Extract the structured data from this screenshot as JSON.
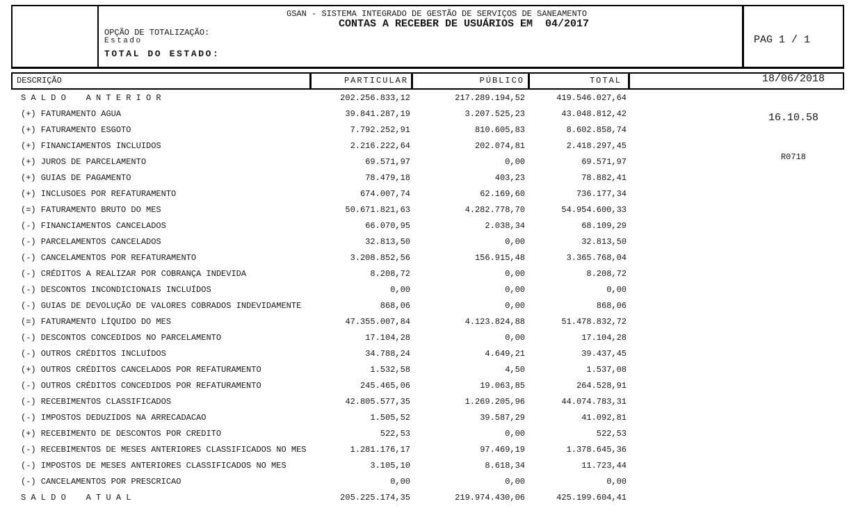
{
  "report": {
    "system_title": "GSAN - SISTEMA INTEGRADO DE GESTÃO DE SERVIÇOS DE SANEAMENTO",
    "title": "CONTAS A RECEBER DE USUÁRIOS EM  04/2017",
    "totalization_option_label": "OPÇÃO DE TOTALIZAÇÃO:",
    "totalization_option_value": "Estado",
    "total_scope_label": "TOTAL DO ESTADO:",
    "page_indicator": "PAG 1 / 1",
    "date": "18/06/2018",
    "time": "16.10.58",
    "report_code": "R0718"
  },
  "table": {
    "columns": {
      "description": "DESCRIÇÃO",
      "particular": "PARTICULAR",
      "publico": "PÚBLICO",
      "total": "TOTAL"
    },
    "rows": [
      {
        "description": "S A L D O    A N T E R I O R",
        "particular": "202.256.833,12",
        "publico": "217.289.194,52",
        "total": "419.546.027,64"
      },
      {
        "description": "(+) FATURAMENTO AGUA",
        "particular": "39.841.287,19",
        "publico": "3.207.525,23",
        "total": "43.048.812,42"
      },
      {
        "description": "(+) FATURAMENTO ESGOTO",
        "particular": "7.792.252,91",
        "publico": "810.605,83",
        "total": "8.602.858,74"
      },
      {
        "description": "(+) FINANCIAMENTOS INCLUIDOS",
        "particular": "2.216.222,64",
        "publico": "202.074,81",
        "total": "2.418.297,45"
      },
      {
        "description": "(+) JUROS DE PARCELAMENTO",
        "particular": "69.571,97",
        "publico": "0,00",
        "total": "69.571,97"
      },
      {
        "description": "(+) GUIAS DE PAGAMENTO",
        "particular": "78.479,18",
        "publico": "403,23",
        "total": "78.882,41"
      },
      {
        "description": "(+) INCLUSOES POR REFATURAMENTO",
        "particular": "674.007,74",
        "publico": "62.169,60",
        "total": "736.177,34"
      },
      {
        "description": "(=) FATURAMENTO BRUTO DO MES",
        "particular": "50.671.821,63",
        "publico": "4.282.778,70",
        "total": "54.954.600,33"
      },
      {
        "description": "(-) FINANCIAMENTOS CANCELADOS",
        "particular": "66.070,95",
        "publico": "2.038,34",
        "total": "68.109,29"
      },
      {
        "description": "(-) PARCELAMENTOS CANCELADOS",
        "particular": "32.813,50",
        "publico": "0,00",
        "total": "32.813,50"
      },
      {
        "description": "(-) CANCELAMENTOS POR REFATURAMENTO",
        "particular": "3.208.852,56",
        "publico": "156.915,48",
        "total": "3.365.768,04"
      },
      {
        "description": "(-) CRÉDITOS A REALIZAR POR COBRANÇA INDEVIDA",
        "particular": "8.208,72",
        "publico": "0,00",
        "total": "8.208,72"
      },
      {
        "description": "(-) DESCONTOS INCONDICIONAIS INCLUÍDOS",
        "particular": "0,00",
        "publico": "0,00",
        "total": "0,00"
      },
      {
        "description": "(-) GUIAS DE DEVOLUÇÃO DE VALORES COBRADOS INDEVIDAMENTE",
        "particular": "868,06",
        "publico": "0,00",
        "total": "868,06"
      },
      {
        "description": "(=) FATURAMENTO LÍQUIDO DO MES",
        "particular": "47.355.007,84",
        "publico": "4.123.824,88",
        "total": "51.478.832,72"
      },
      {
        "description": "(-) DESCONTOS CONCEDIDOS NO PARCELAMENTO",
        "particular": "17.104,28",
        "publico": "0,00",
        "total": "17.104,28"
      },
      {
        "description": "(-) OUTROS CRÉDITOS INCLUÍDOS",
        "particular": "34.788,24",
        "publico": "4.649,21",
        "total": "39.437,45"
      },
      {
        "description": "(+) OUTROS CRÉDITOS CANCELADOS POR REFATURAMENTO",
        "particular": "1.532,58",
        "publico": "4,50",
        "total": "1.537,08"
      },
      {
        "description": "(-) OUTROS CRÉDITOS CONCEDIDOS POR REFATURAMENTO",
        "particular": "245.465,06",
        "publico": "19.063,85",
        "total": "264.528,91"
      },
      {
        "description": "(-) RECEBIMENTOS CLASSIFICADOS",
        "particular": "42.805.577,35",
        "publico": "1.269.205,96",
        "total": "44.074.783,31"
      },
      {
        "description": "(-) IMPOSTOS DEDUZIDOS NA ARRECADACAO",
        "particular": "1.505,52",
        "publico": "39.587,29",
        "total": "41.092,81"
      },
      {
        "description": "(+) RECEBIMENTO DE DESCONTOS POR CREDITO",
        "particular": "522,53",
        "publico": "0,00",
        "total": "522,53"
      },
      {
        "description": "(-) RECEBIMENTOS DE MESES ANTERIORES CLASSIFICADOS NO MES",
        "particular": "1.281.176,17",
        "publico": "97.469,19",
        "total": "1.378.645,36"
      },
      {
        "description": "(-) IMPOSTOS DE MESES ANTERIORES CLASSIFICADOS NO MES",
        "particular": "3.105,10",
        "publico": "8.618,34",
        "total": "11.723,44"
      },
      {
        "description": "(-) CANCELAMENTOS POR PRESCRICAO",
        "particular": "0,00",
        "publico": "0,00",
        "total": "0,00"
      },
      {
        "description": "S A L D O    A T U A L",
        "particular": "205.225.174,35",
        "publico": "219.974.430,06",
        "total": "425.199.604,41"
      }
    ]
  }
}
